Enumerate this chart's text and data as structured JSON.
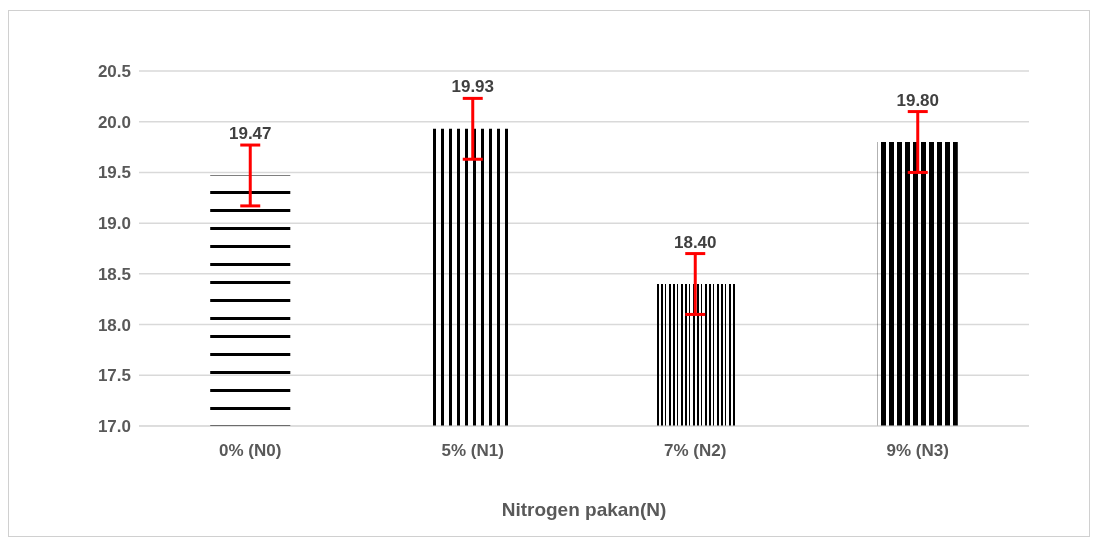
{
  "chart_data": {
    "type": "bar",
    "xlabel": "Nitrogen pakan(N)",
    "categories": [
      "0% (N0)",
      "5% (N1)",
      "7% (N2)",
      "9% (N3)"
    ],
    "values": [
      19.47,
      19.93,
      18.4,
      19.8
    ],
    "colors": [
      "#000000",
      "#000000",
      "#000000",
      "#000000"
    ],
    "errors": [
      0.3,
      0.3,
      0.3,
      0.3
    ],
    "value_labels": [
      "19.47",
      "19.93",
      "18.40",
      "19.80"
    ],
    "ylim": [
      17.0,
      20.5
    ],
    "yticks": [
      {
        "value": 17.0,
        "label": "17.0"
      },
      {
        "value": 17.5,
        "label": "17.5"
      },
      {
        "value": 18.0,
        "label": "18.0"
      },
      {
        "value": 18.5,
        "label": "18.5"
      },
      {
        "value": 19.0,
        "label": "19.0"
      },
      {
        "value": 19.5,
        "label": "19.5"
      },
      {
        "value": 20.0,
        "label": "20.0"
      },
      {
        "value": 20.5,
        "label": "20.5"
      }
    ],
    "grid": "y"
  }
}
